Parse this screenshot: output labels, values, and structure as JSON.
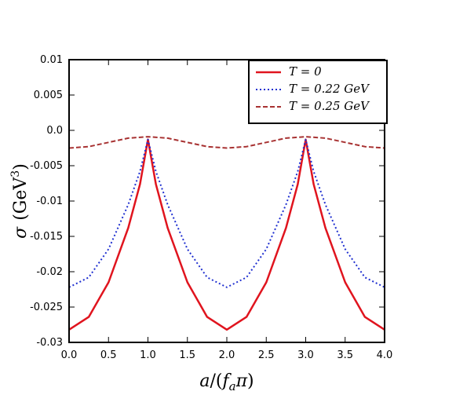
{
  "chart_data": {
    "type": "line",
    "xlabel": "a/(f_a π)",
    "ylabel": "σ (GeV³)",
    "xlim": [
      0.0,
      4.0
    ],
    "ylim": [
      -0.03,
      0.01
    ],
    "x_ticks": [
      "0.0",
      "0.5",
      "1.0",
      "1.5",
      "2.0",
      "2.5",
      "3.0",
      "3.5",
      "4.0"
    ],
    "x_tick_values": [
      0,
      0.5,
      1,
      1.5,
      2,
      2.5,
      3,
      3.5,
      4
    ],
    "y_ticks": [
      "0.01",
      "0.005",
      "0.0",
      "-0.005",
      "-0.01",
      "-0.015",
      "-0.02",
      "-0.025",
      "-0.03"
    ],
    "y_tick_values": [
      0.01,
      0.005,
      0.0,
      -0.005,
      -0.01,
      -0.015,
      -0.02,
      -0.025,
      -0.03
    ],
    "legend_position": "top-right",
    "series": [
      {
        "name": "T = 0",
        "color": "#e0141e",
        "style": "solid",
        "x": [
          0.0,
          0.25,
          0.5,
          0.75,
          0.9,
          1.0,
          1.1,
          1.25,
          1.5,
          1.75,
          2.0,
          2.25,
          2.5,
          2.75,
          2.9,
          3.0,
          3.1,
          3.25,
          3.5,
          3.75,
          4.0
        ],
        "y": [
          -0.0282,
          -0.0264,
          -0.0215,
          -0.0138,
          -0.0076,
          -0.0013,
          -0.0076,
          -0.0138,
          -0.0215,
          -0.0264,
          -0.0282,
          -0.0264,
          -0.0215,
          -0.0138,
          -0.0076,
          -0.0013,
          -0.0076,
          -0.0138,
          -0.0215,
          -0.0264,
          -0.0282
        ]
      },
      {
        "name": "T = 0.22 GeV",
        "color": "#2030d0",
        "style": "dotted",
        "x": [
          0.0,
          0.25,
          0.5,
          0.75,
          0.9,
          1.0,
          1.1,
          1.25,
          1.5,
          1.75,
          2.0,
          2.25,
          2.5,
          2.75,
          2.9,
          3.0,
          3.1,
          3.25,
          3.5,
          3.75,
          4.0
        ],
        "y": [
          -0.0222,
          -0.0208,
          -0.0168,
          -0.0105,
          -0.0058,
          -0.0013,
          -0.0058,
          -0.0105,
          -0.0168,
          -0.0208,
          -0.0222,
          -0.0208,
          -0.0168,
          -0.0105,
          -0.0058,
          -0.0013,
          -0.0058,
          -0.0105,
          -0.0168,
          -0.0208,
          -0.0222
        ]
      },
      {
        "name": "T = 0.25 GeV",
        "color": "#a83232",
        "style": "dashed",
        "x": [
          0.0,
          0.25,
          0.5,
          0.75,
          1.0,
          1.25,
          1.5,
          1.75,
          2.0,
          2.25,
          2.5,
          2.75,
          3.0,
          3.25,
          3.5,
          3.75,
          4.0
        ],
        "y": [
          -0.0025,
          -0.0023,
          -0.0017,
          -0.0011,
          -0.0009,
          -0.0011,
          -0.0017,
          -0.0023,
          -0.0025,
          -0.0023,
          -0.0017,
          -0.0011,
          -0.0009,
          -0.0011,
          -0.0017,
          -0.0023,
          -0.0025
        ]
      }
    ]
  }
}
